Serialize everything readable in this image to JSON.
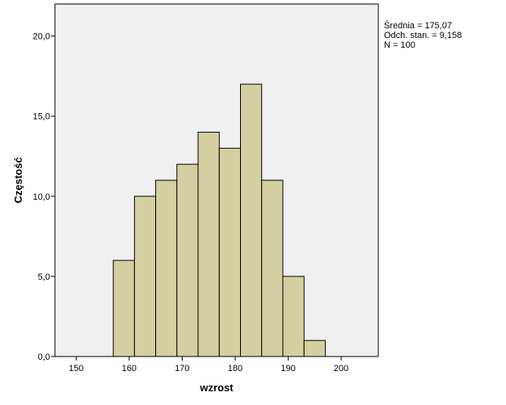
{
  "chart_data": {
    "type": "bar",
    "subtype": "histogram",
    "xlabel": "wzrost",
    "ylabel": "Częstość",
    "xlim": [
      146,
      207
    ],
    "ylim": [
      0,
      22
    ],
    "xticks": [
      150,
      160,
      170,
      180,
      190,
      200
    ],
    "yticks": [
      0,
      5,
      10,
      15,
      20
    ],
    "xtick_labels": [
      "150",
      "160",
      "170",
      "180",
      "190",
      "200"
    ],
    "ytick_labels": [
      "0,0",
      "5,0",
      "10,0",
      "15,0",
      "20,0"
    ],
    "bins": [
      {
        "start": 157,
        "end": 161,
        "value": 6
      },
      {
        "start": 161,
        "end": 165,
        "value": 10
      },
      {
        "start": 165,
        "end": 169,
        "value": 11
      },
      {
        "start": 169,
        "end": 173,
        "value": 12
      },
      {
        "start": 173,
        "end": 177,
        "value": 14
      },
      {
        "start": 177,
        "end": 181,
        "value": 13
      },
      {
        "start": 181,
        "end": 185,
        "value": 17
      },
      {
        "start": 185,
        "end": 189,
        "value": 11
      },
      {
        "start": 189,
        "end": 193,
        "value": 5
      },
      {
        "start": 193,
        "end": 197,
        "value": 1
      }
    ],
    "grid": false,
    "bar_color": "#d5d0a1",
    "plot_background": "#f0f0f0"
  },
  "stats": {
    "mean": "Średnia = 175,07",
    "std": "Odch. stan. = 9,158",
    "n": "N = 100"
  }
}
